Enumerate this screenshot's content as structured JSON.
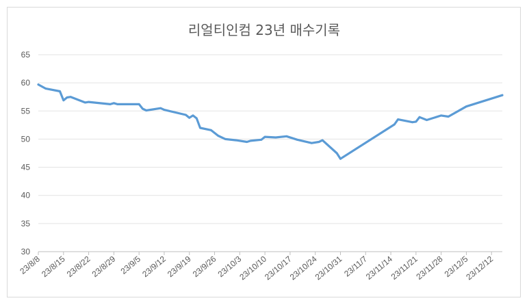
{
  "chart_data": {
    "type": "line",
    "title": "리얼티인컴 23년 매수기록",
    "xlabel": "",
    "ylabel": "",
    "ylim": [
      30,
      65
    ],
    "yticks": [
      30,
      35,
      40,
      45,
      50,
      55,
      60,
      65
    ],
    "grid": true,
    "legend": "none",
    "color": "#5b9bd5",
    "x_labels": [
      "23/8/8",
      "23/8/15",
      "23/8/22",
      "23/8/29",
      "23/9/5",
      "23/9/12",
      "23/9/19",
      "23/9/26",
      "23/10/3",
      "23/10/10",
      "23/10/17",
      "23/10/24",
      "23/10/31",
      "23/11/7",
      "23/11/14",
      "23/11/21",
      "23/11/28",
      "23/12/5",
      "23/12/12"
    ],
    "series": [
      {
        "name": "",
        "points": [
          [
            "23/8/8",
            59.7
          ],
          [
            "23/8/10",
            59.0
          ],
          [
            "23/8/14",
            58.5
          ],
          [
            "23/8/15",
            56.9
          ],
          [
            "23/8/16",
            57.4
          ],
          [
            "23/8/17",
            57.5
          ],
          [
            "23/8/21",
            56.5
          ],
          [
            "23/8/22",
            56.6
          ],
          [
            "23/8/28",
            56.2
          ],
          [
            "23/8/29",
            56.4
          ],
          [
            "23/8/30",
            56.2
          ],
          [
            "23/9/5",
            56.2
          ],
          [
            "23/9/6",
            55.4
          ],
          [
            "23/9/7",
            55.1
          ],
          [
            "23/9/11",
            55.5
          ],
          [
            "23/9/12",
            55.2
          ],
          [
            "23/9/18",
            54.3
          ],
          [
            "23/9/19",
            53.8
          ],
          [
            "23/9/20",
            54.2
          ],
          [
            "23/9/21",
            53.7
          ],
          [
            "23/9/22",
            52.0
          ],
          [
            "23/9/25",
            51.6
          ],
          [
            "23/9/27",
            50.6
          ],
          [
            "23/9/29",
            50.0
          ],
          [
            "23/10/2",
            49.8
          ],
          [
            "23/10/5",
            49.5
          ],
          [
            "23/10/6",
            49.7
          ],
          [
            "23/10/9",
            49.9
          ],
          [
            "23/10/10",
            50.4
          ],
          [
            "23/10/13",
            50.3
          ],
          [
            "23/10/16",
            50.5
          ],
          [
            "23/10/19",
            49.9
          ],
          [
            "23/10/23",
            49.3
          ],
          [
            "23/10/25",
            49.5
          ],
          [
            "23/10/26",
            49.8
          ],
          [
            "23/10/30",
            47.5
          ],
          [
            "23/10/31",
            46.5
          ],
          [
            "23/11/15",
            52.6
          ],
          [
            "23/11/16",
            53.5
          ],
          [
            "23/11/20",
            53.0
          ],
          [
            "23/11/21",
            53.1
          ],
          [
            "23/11/22",
            53.9
          ],
          [
            "23/11/24",
            53.4
          ],
          [
            "23/11/28",
            54.2
          ],
          [
            "23/11/30",
            54.0
          ],
          [
            "23/12/5",
            55.8
          ],
          [
            "23/12/15",
            57.8
          ]
        ]
      }
    ]
  }
}
